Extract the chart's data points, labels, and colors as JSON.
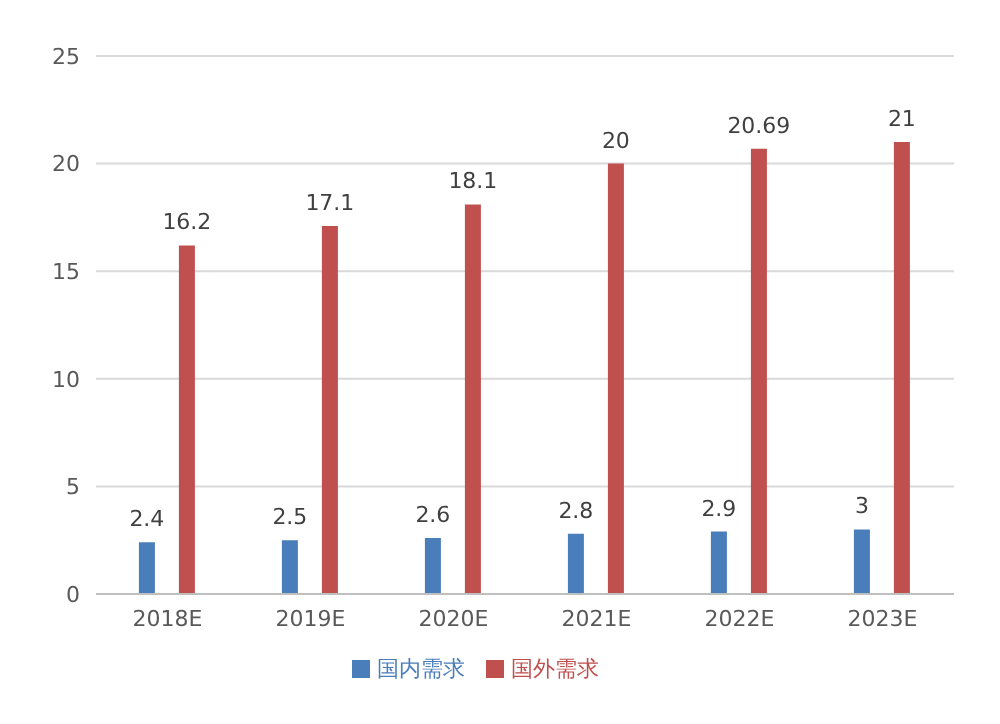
{
  "chart_data": {
    "type": "bar",
    "categories": [
      "2018E",
      "2019E",
      "2020E",
      "2021E",
      "2022E",
      "2023E"
    ],
    "series": [
      {
        "name": "国内需求",
        "color": "#4a7ebb",
        "values": [
          2.4,
          2.5,
          2.6,
          2.8,
          2.9,
          3
        ]
      },
      {
        "name": "国外需求",
        "color": "#c0504d",
        "values": [
          16.2,
          17.1,
          18.1,
          20,
          20.69,
          21
        ]
      }
    ],
    "ylim": [
      0,
      25
    ],
    "yticks": [
      0,
      5,
      10,
      15,
      20,
      25
    ],
    "grid": "y",
    "legend": "bottom",
    "data_labels": true
  }
}
